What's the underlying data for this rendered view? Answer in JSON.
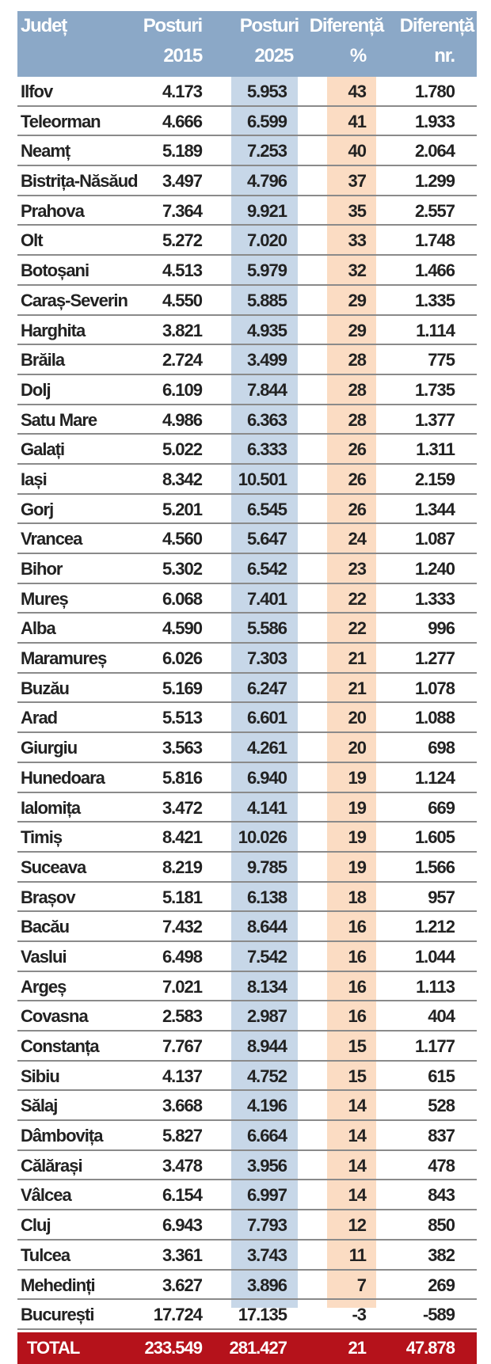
{
  "header": {
    "county": "Județ",
    "posts2015": [
      "Posturi",
      "2015"
    ],
    "posts2025": [
      "Posturi",
      "2025"
    ],
    "diff_pct": [
      "Diferență",
      "%"
    ],
    "diff_nr": [
      "Diferență",
      "nr."
    ]
  },
  "rows": [
    [
      "Ilfov",
      "4.173",
      "5.953",
      "43",
      "1.780"
    ],
    [
      "Teleorman",
      "4.666",
      "6.599",
      "41",
      "1.933"
    ],
    [
      "Neamț",
      "5.189",
      "7.253",
      "40",
      "2.064"
    ],
    [
      "Bistrița-Năsăud",
      "3.497",
      "4.796",
      "37",
      "1.299"
    ],
    [
      "Prahova",
      "7.364",
      "9.921",
      "35",
      "2.557"
    ],
    [
      "Olt",
      "5.272",
      "7.020",
      "33",
      "1.748"
    ],
    [
      "Botoșani",
      "4.513",
      "5.979",
      "32",
      "1.466"
    ],
    [
      "Caraș-Severin",
      "4.550",
      "5.885",
      "29",
      "1.335"
    ],
    [
      "Harghita",
      "3.821",
      "4.935",
      "29",
      "1.114"
    ],
    [
      "Brăila",
      "2.724",
      "3.499",
      "28",
      "775"
    ],
    [
      "Dolj",
      "6.109",
      "7.844",
      "28",
      "1.735"
    ],
    [
      "Satu Mare",
      "4.986",
      "6.363",
      "28",
      "1.377"
    ],
    [
      "Galați",
      "5.022",
      "6.333",
      "26",
      "1.311"
    ],
    [
      "Iași",
      "8.342",
      "10.501",
      "26",
      "2.159"
    ],
    [
      "Gorj",
      "5.201",
      "6.545",
      "26",
      "1.344"
    ],
    [
      "Vrancea",
      "4.560",
      "5.647",
      "24",
      "1.087"
    ],
    [
      "Bihor",
      "5.302",
      "6.542",
      "23",
      "1.240"
    ],
    [
      "Mureș",
      "6.068",
      "7.401",
      "22",
      "1.333"
    ],
    [
      "Alba",
      "4.590",
      "5.586",
      "22",
      "996"
    ],
    [
      "Maramureș",
      "6.026",
      "7.303",
      "21",
      "1.277"
    ],
    [
      "Buzău",
      "5.169",
      "6.247",
      "21",
      "1.078"
    ],
    [
      "Arad",
      "5.513",
      "6.601",
      "20",
      "1.088"
    ],
    [
      "Giurgiu",
      "3.563",
      "4.261",
      "20",
      "698"
    ],
    [
      "Hunedoara",
      "5.816",
      "6.940",
      "19",
      "1.124"
    ],
    [
      "Ialomița",
      "3.472",
      "4.141",
      "19",
      "669"
    ],
    [
      "Timiș",
      "8.421",
      "10.026",
      "19",
      "1.605"
    ],
    [
      "Suceava",
      "8.219",
      "9.785",
      "19",
      "1.566"
    ],
    [
      "Brașov",
      "5.181",
      "6.138",
      "18",
      "957"
    ],
    [
      "Bacău",
      "7.432",
      "8.644",
      "16",
      "1.212"
    ],
    [
      "Vaslui",
      "6.498",
      "7.542",
      "16",
      "1.044"
    ],
    [
      "Argeș",
      "7.021",
      "8.134",
      "16",
      "1.113"
    ],
    [
      "Covasna",
      "2.583",
      "2.987",
      "16",
      "404"
    ],
    [
      "Constanța",
      "7.767",
      "8.944",
      "15",
      "1.177"
    ],
    [
      "Sibiu",
      "4.137",
      "4.752",
      "15",
      "615"
    ],
    [
      "Sălaj",
      "3.668",
      "4.196",
      "14",
      "528"
    ],
    [
      "Dâmbovița",
      "5.827",
      "6.664",
      "14",
      "837"
    ],
    [
      "Călărași",
      "3.478",
      "3.956",
      "14",
      "478"
    ],
    [
      "Vâlcea",
      "6.154",
      "6.997",
      "14",
      "843"
    ],
    [
      "Cluj",
      "6.943",
      "7.793",
      "12",
      "850"
    ],
    [
      "Tulcea",
      "3.361",
      "3.743",
      "11",
      "382"
    ],
    [
      "Mehedinți",
      "3.627",
      "3.896",
      "7",
      "269"
    ],
    [
      "București",
      "17.724",
      "17.135",
      "-3",
      "-589"
    ]
  ],
  "total": [
    "TOTAL",
    "233.549",
    "281.427",
    "21",
    "47.878"
  ],
  "colors": {
    "header": "#8ba8c7",
    "band_2025": "#c7d7e8",
    "band_pct": "#fbdcc3",
    "total": "#b5121b"
  }
}
